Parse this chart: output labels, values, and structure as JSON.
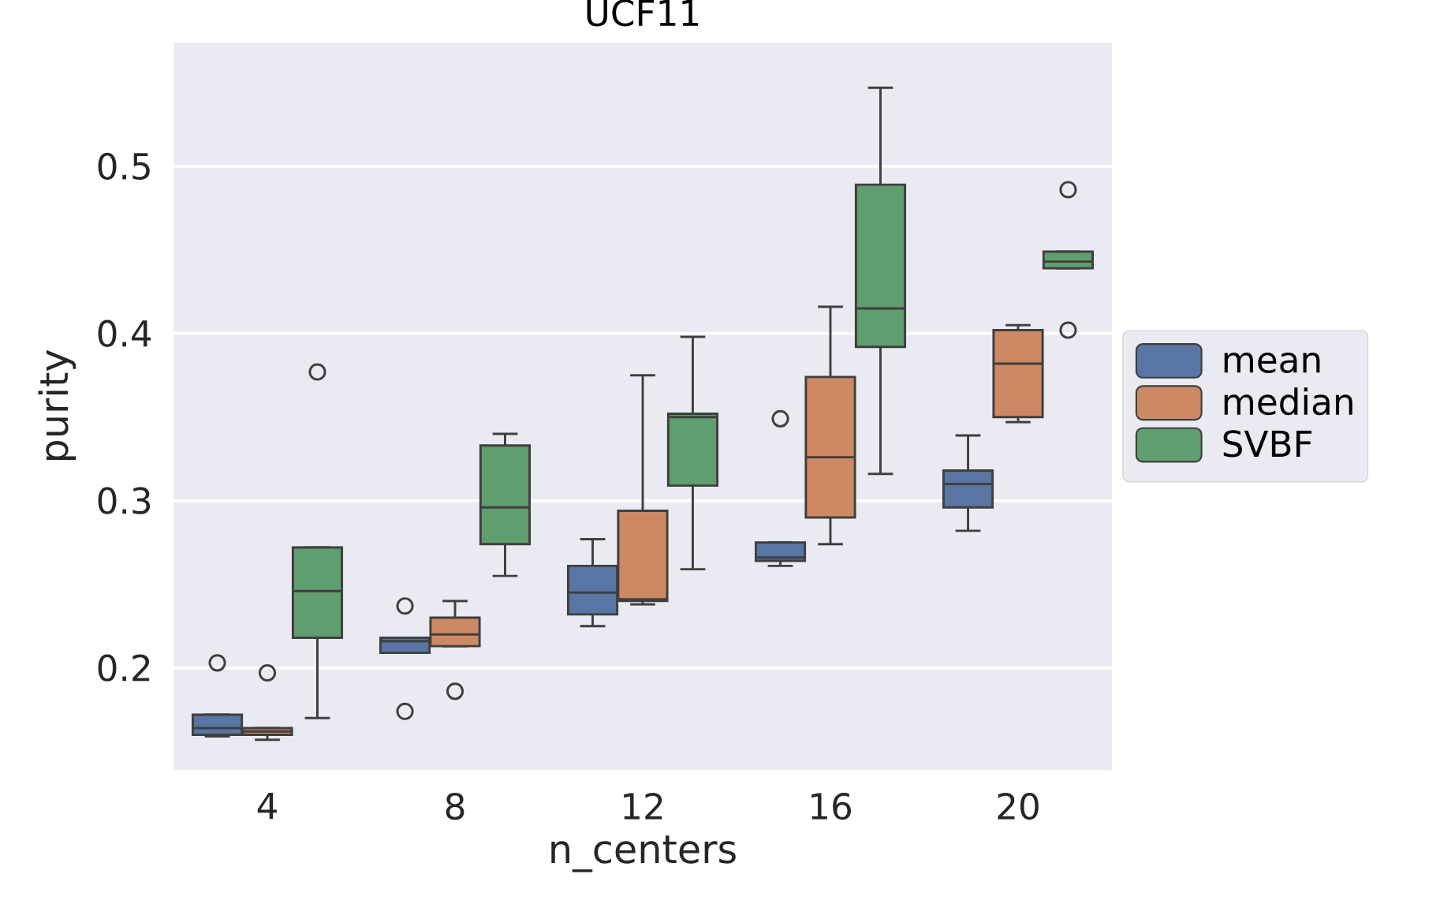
{
  "chart_data": {
    "type": "box",
    "title": "UCF11",
    "xlabel": "n_centers",
    "ylabel": "purity",
    "categories": [
      "4",
      "8",
      "12",
      "16",
      "20"
    ],
    "ylim": [
      0.139,
      0.574
    ],
    "yticks": [
      0.2,
      0.3,
      0.4,
      0.5
    ],
    "grid": "y",
    "legend": "right",
    "series": [
      {
        "name": "mean",
        "color": "#5875a4",
        "boxes": [
          {
            "low": 0.159,
            "q1": 0.16,
            "median": 0.164,
            "q3": 0.172,
            "high": 0.172,
            "outliers": [
              0.203
            ]
          },
          {
            "low": 0.209,
            "q1": 0.209,
            "median": 0.216,
            "q3": 0.218,
            "high": 0.218,
            "outliers": [
              0.237,
              0.174
            ]
          },
          {
            "low": 0.225,
            "q1": 0.232,
            "median": 0.245,
            "q3": 0.261,
            "high": 0.277
          },
          {
            "low": 0.261,
            "q1": 0.264,
            "median": 0.266,
            "q3": 0.275,
            "high": 0.275,
            "outliers": [
              0.349
            ]
          },
          {
            "low": 0.282,
            "q1": 0.296,
            "median": 0.31,
            "q3": 0.318,
            "high": 0.339
          }
        ]
      },
      {
        "name": "median",
        "color": "#cc8963",
        "boxes": [
          {
            "low": 0.157,
            "q1": 0.16,
            "median": 0.162,
            "q3": 0.164,
            "high": 0.164,
            "outliers": [
              0.197
            ]
          },
          {
            "low": 0.213,
            "q1": 0.213,
            "median": 0.22,
            "q3": 0.23,
            "high": 0.24,
            "outliers": [
              0.186
            ]
          },
          {
            "low": 0.238,
            "q1": 0.24,
            "median": 0.241,
            "q3": 0.294,
            "high": 0.375
          },
          {
            "low": 0.274,
            "q1": 0.29,
            "median": 0.326,
            "q3": 0.374,
            "high": 0.416
          },
          {
            "low": 0.347,
            "q1": 0.35,
            "median": 0.382,
            "q3": 0.402,
            "high": 0.405
          }
        ]
      },
      {
        "name": "SVBF",
        "color": "#5f9e6e",
        "boxes": [
          {
            "low": 0.17,
            "q1": 0.218,
            "median": 0.246,
            "q3": 0.272,
            "high": 0.272,
            "outliers": [
              0.377
            ]
          },
          {
            "low": 0.255,
            "q1": 0.274,
            "median": 0.296,
            "q3": 0.333,
            "high": 0.34
          },
          {
            "low": 0.259,
            "q1": 0.309,
            "median": 0.35,
            "q3": 0.352,
            "high": 0.398
          },
          {
            "low": 0.316,
            "q1": 0.392,
            "median": 0.415,
            "q3": 0.489,
            "high": 0.547
          },
          {
            "low": 0.439,
            "q1": 0.439,
            "median": 0.443,
            "q3": 0.449,
            "high": 0.449,
            "outliers": [
              0.486,
              0.402
            ]
          }
        ]
      }
    ]
  }
}
